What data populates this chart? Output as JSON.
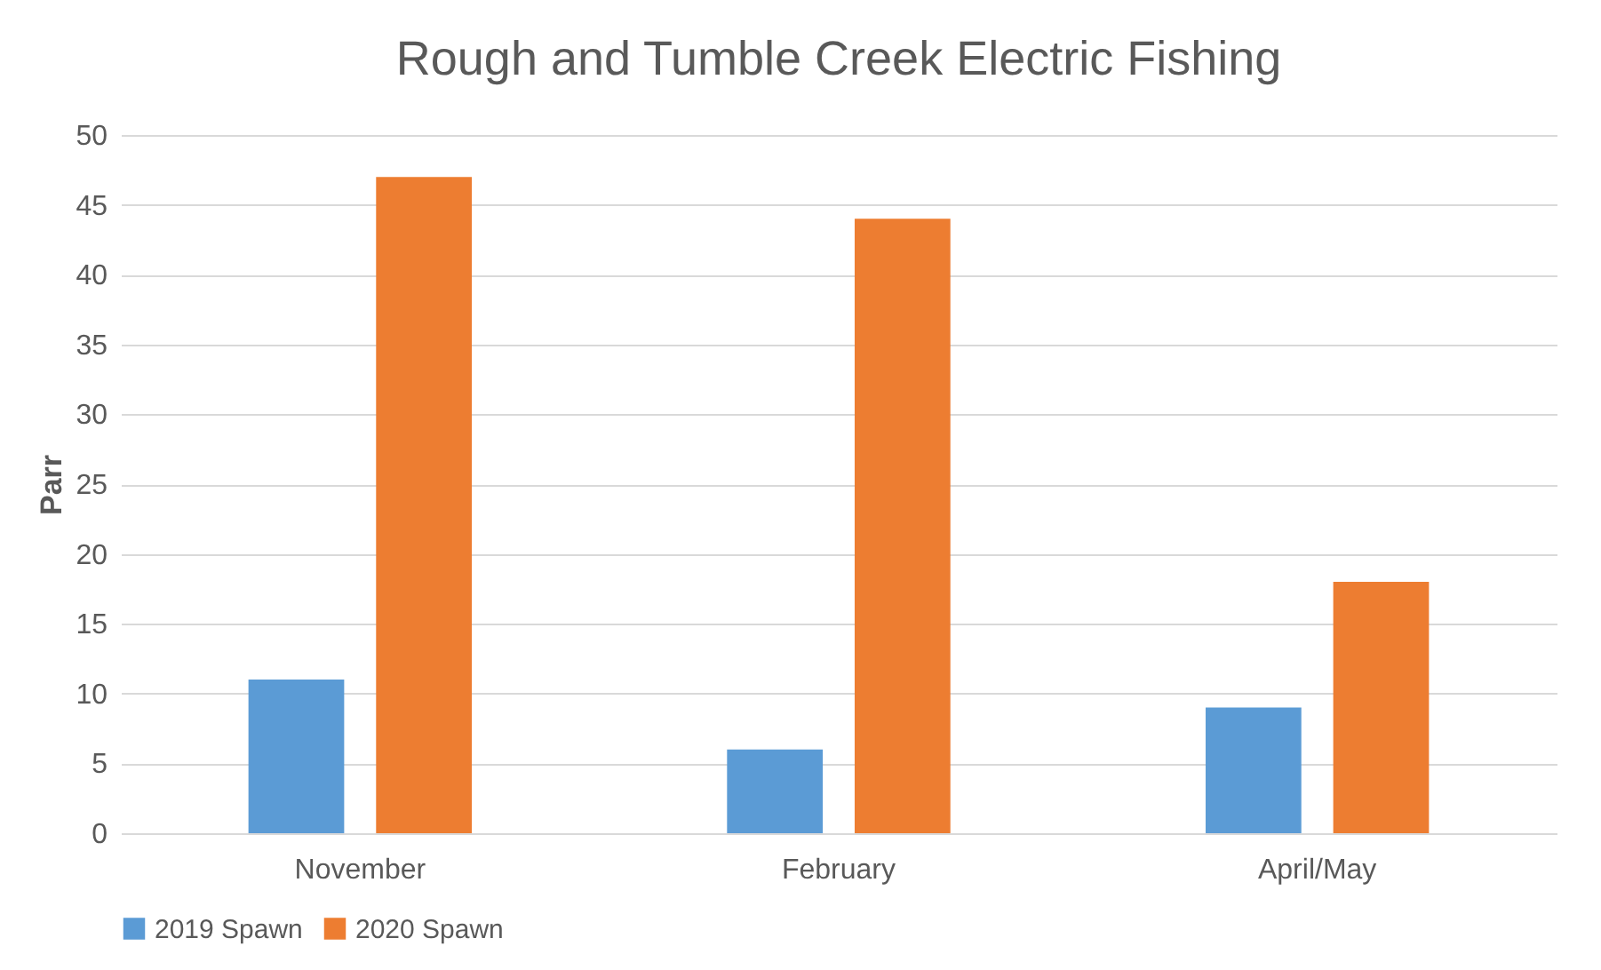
{
  "chart_data": {
    "type": "bar",
    "title": "Rough and Tumble Creek Electric Fishing",
    "ylabel": "Parr",
    "categories": [
      "November",
      "February",
      "April/May"
    ],
    "series": [
      {
        "name": "2019 Spawn",
        "color": "#5b9bd5",
        "values": [
          11,
          6,
          9
        ]
      },
      {
        "name": "2020 Spawn",
        "color": "#ed7d31",
        "values": [
          47,
          44,
          18
        ]
      }
    ],
    "ylim": [
      0,
      50
    ],
    "yticks": [
      0,
      5,
      10,
      15,
      20,
      25,
      30,
      35,
      40,
      45,
      50
    ],
    "grid": "y",
    "legend": "bottom"
  }
}
